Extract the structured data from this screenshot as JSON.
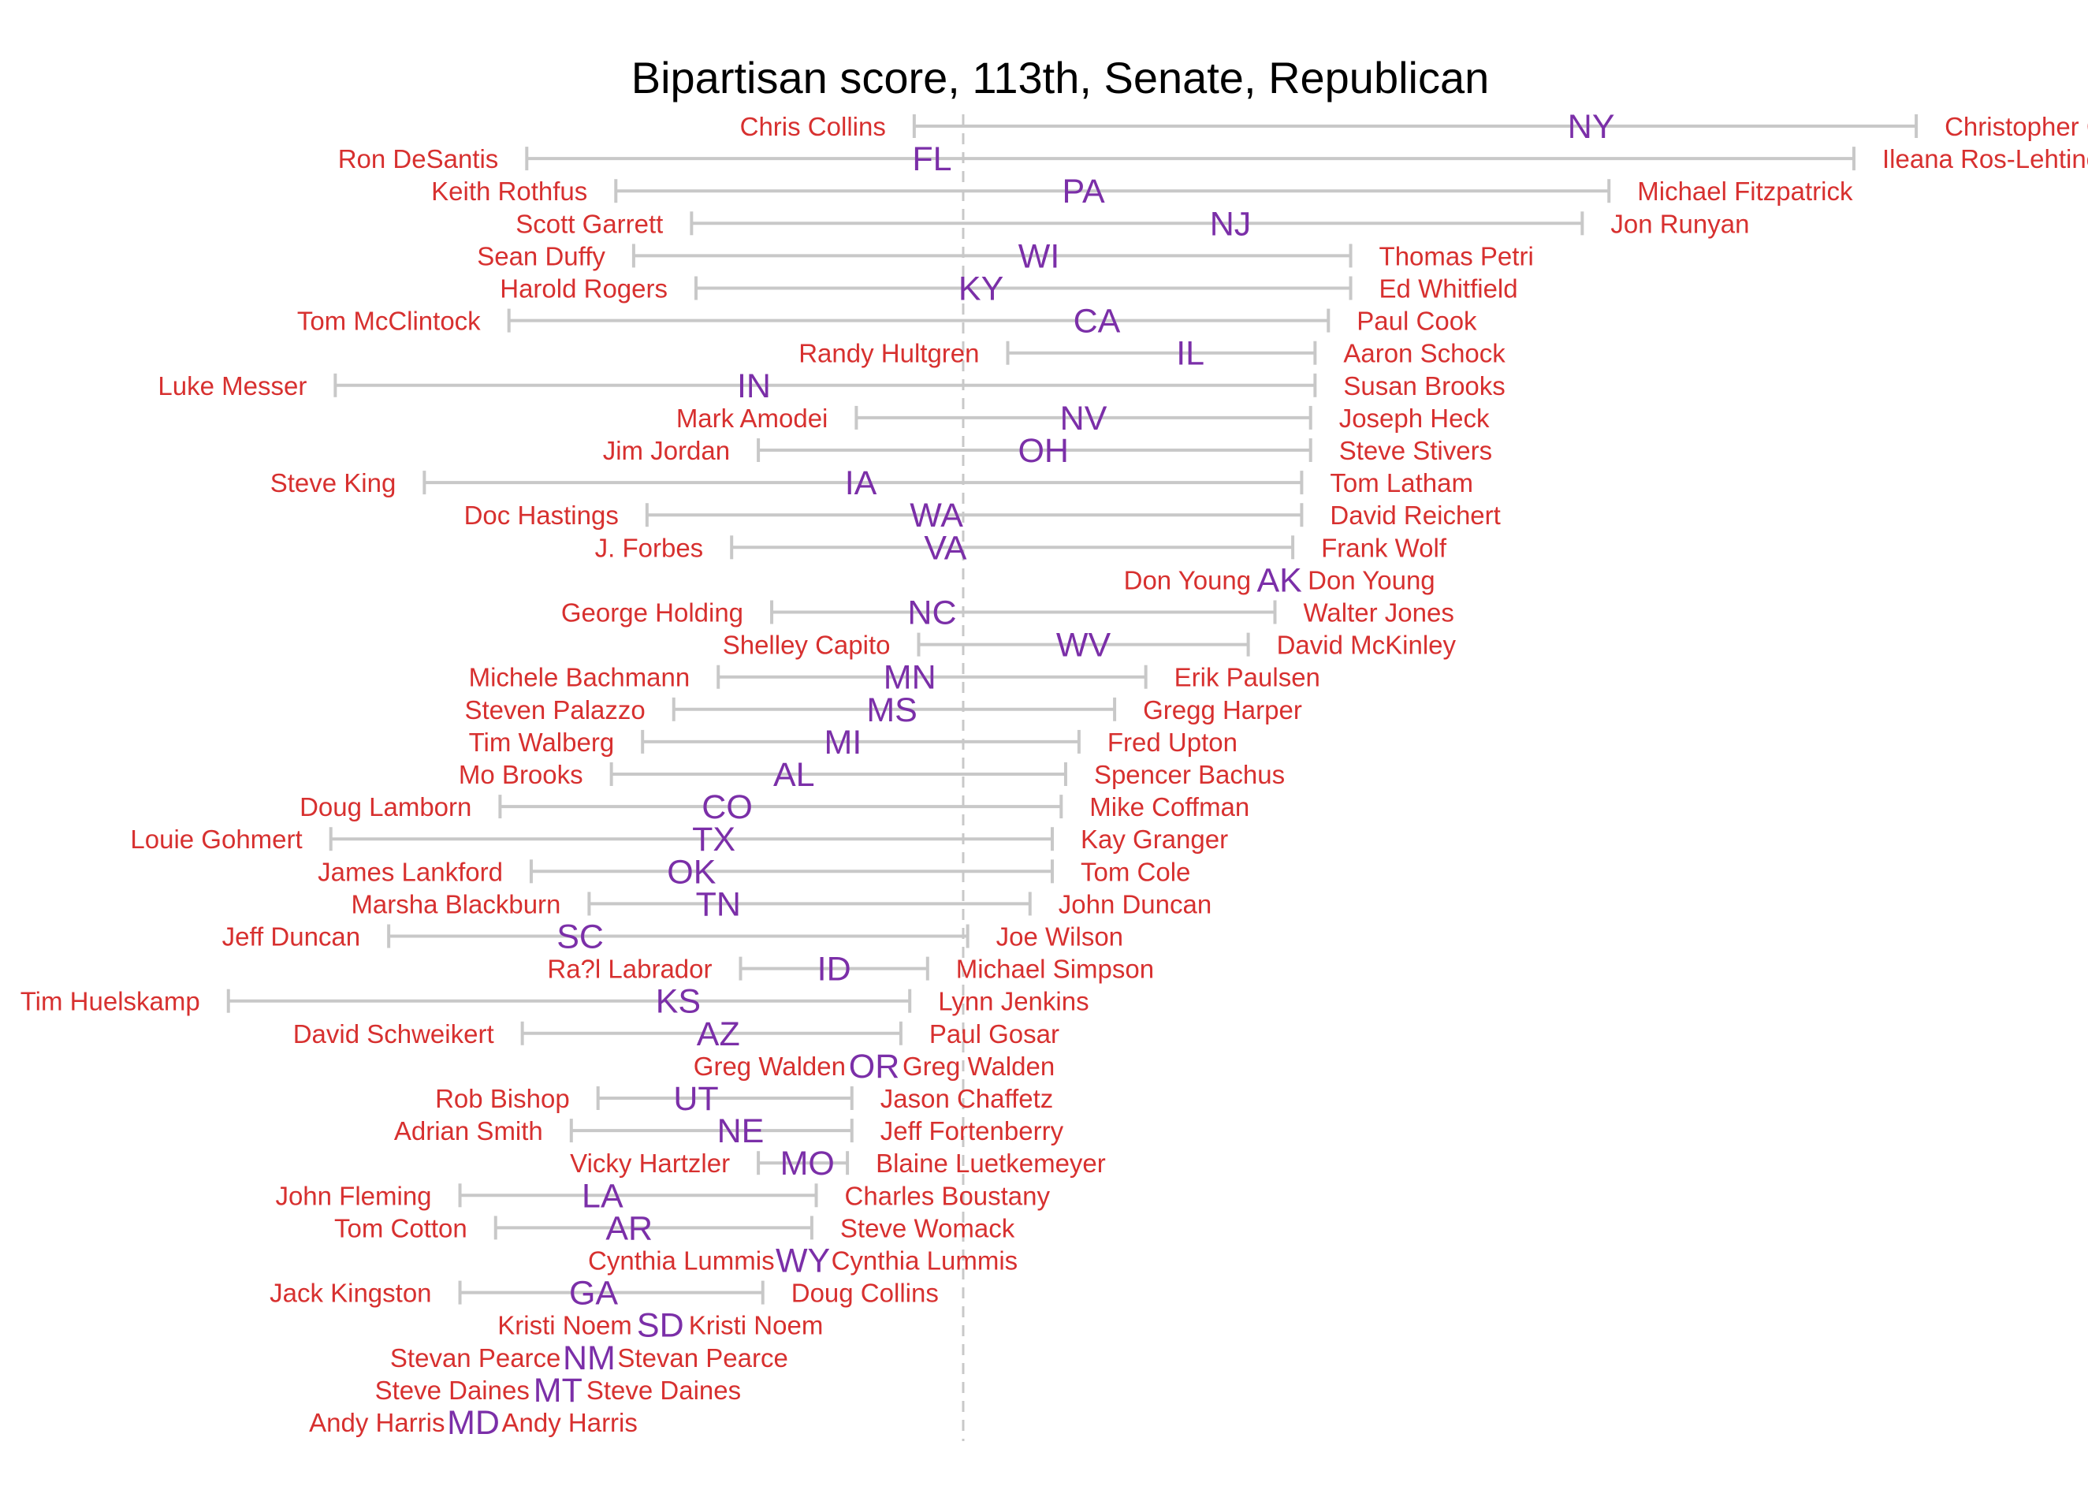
{
  "colors": {
    "name": "#d7302f",
    "state": "#7b2fa8",
    "range": "#c8c8c8",
    "reference": "#c8c8c8"
  },
  "chart_data": {
    "type": "range",
    "title": "Bipartisan score, 113th, Senate, Republican",
    "xlabel": "",
    "ylabel": "",
    "grid": false,
    "legend": "none",
    "xlim": [
      -2.15,
      3.1
    ],
    "reference_line": 0,
    "rows": [
      {
        "state": "NY",
        "low_name": "Chris Collins",
        "high_name": "Christopher Gibs",
        "low": -0.11,
        "high": 2.14,
        "mid": 1.41
      },
      {
        "state": "FL",
        "low_name": "Ron DeSantis",
        "high_name": "Ileana Ros-Lehtinen",
        "low": -0.98,
        "high": 2.0,
        "mid": -0.07
      },
      {
        "state": "PA",
        "low_name": "Keith Rothfus",
        "high_name": "Michael Fitzpatrick",
        "low": -0.78,
        "high": 1.45,
        "mid": 0.27
      },
      {
        "state": "NJ",
        "low_name": "Scott Garrett",
        "high_name": "Jon Runyan",
        "low": -0.61,
        "high": 1.39,
        "mid": 0.6
      },
      {
        "state": "WI",
        "low_name": "Sean Duffy",
        "high_name": "Thomas Petri",
        "low": -0.74,
        "high": 0.87,
        "mid": 0.17
      },
      {
        "state": "KY",
        "low_name": "Harold Rogers",
        "high_name": "Ed Whitfield",
        "low": -0.6,
        "high": 0.87,
        "mid": 0.04
      },
      {
        "state": "CA",
        "low_name": "Tom McClintock",
        "high_name": "Paul Cook",
        "low": -1.02,
        "high": 0.82,
        "mid": 0.3
      },
      {
        "state": "IL",
        "low_name": "Randy Hultgren",
        "high_name": "Aaron Schock",
        "low": 0.1,
        "high": 0.79,
        "mid": 0.51
      },
      {
        "state": "IN",
        "low_name": "Luke Messer",
        "high_name": "Susan Brooks",
        "low": -1.41,
        "high": 0.79,
        "mid": -0.47
      },
      {
        "state": "NV",
        "low_name": "Mark Amodei",
        "high_name": "Joseph Heck",
        "low": -0.24,
        "high": 0.78,
        "mid": 0.27
      },
      {
        "state": "OH",
        "low_name": "Jim Jordan",
        "high_name": "Steve Stivers",
        "low": -0.46,
        "high": 0.78,
        "mid": 0.18
      },
      {
        "state": "IA",
        "low_name": "Steve King",
        "high_name": "Tom Latham",
        "low": -1.21,
        "high": 0.76,
        "mid": -0.23
      },
      {
        "state": "WA",
        "low_name": "Doc Hastings",
        "high_name": "David Reichert",
        "low": -0.71,
        "high": 0.76,
        "mid": -0.06
      },
      {
        "state": "VA",
        "low_name": "J. Forbes",
        "high_name": "Frank Wolf",
        "low": -0.52,
        "high": 0.74,
        "mid": -0.04
      },
      {
        "state": "AK",
        "low_name": "Don Young",
        "high_name": "Don Young",
        "low": 0.71,
        "high": 0.71,
        "mid": 0.71
      },
      {
        "state": "NC",
        "low_name": "George Holding",
        "high_name": "Walter Jones",
        "low": -0.43,
        "high": 0.7,
        "mid": -0.07
      },
      {
        "state": "WV",
        "low_name": "Shelley Capito",
        "high_name": "David McKinley",
        "low": -0.1,
        "high": 0.64,
        "mid": 0.27
      },
      {
        "state": "MN",
        "low_name": "Michele Bachmann",
        "high_name": "Erik Paulsen",
        "low": -0.55,
        "high": 0.41,
        "mid": -0.12
      },
      {
        "state": "MS",
        "low_name": "Steven Palazzo",
        "high_name": "Gregg Harper",
        "low": -0.65,
        "high": 0.34,
        "mid": -0.16
      },
      {
        "state": "MI",
        "low_name": "Tim Walberg",
        "high_name": "Fred Upton",
        "low": -0.72,
        "high": 0.26,
        "mid": -0.27
      },
      {
        "state": "AL",
        "low_name": "Mo Brooks",
        "high_name": "Spencer Bachus",
        "low": -0.79,
        "high": 0.23,
        "mid": -0.38
      },
      {
        "state": "CO",
        "low_name": "Doug Lamborn",
        "high_name": "Mike Coffman",
        "low": -1.04,
        "high": 0.22,
        "mid": -0.53
      },
      {
        "state": "TX",
        "low_name": "Louie Gohmert",
        "high_name": "Kay Granger",
        "low": -1.42,
        "high": 0.2,
        "mid": -0.56
      },
      {
        "state": "OK",
        "low_name": "James Lankford",
        "high_name": "Tom Cole",
        "low": -0.97,
        "high": 0.2,
        "mid": -0.61
      },
      {
        "state": "TN",
        "low_name": "Marsha Blackburn",
        "high_name": "John Duncan",
        "low": -0.84,
        "high": 0.15,
        "mid": -0.55
      },
      {
        "state": "SC",
        "low_name": "Jeff Duncan",
        "high_name": "Joe Wilson",
        "low": -1.29,
        "high": 0.01,
        "mid": -0.86
      },
      {
        "state": "ID",
        "low_name": "Ra?l Labrador",
        "high_name": "Michael Simpson",
        "low": -0.5,
        "high": -0.08,
        "mid": -0.29
      },
      {
        "state": "KS",
        "low_name": "Tim Huelskamp",
        "high_name": "Lynn Jenkins",
        "low": -1.65,
        "high": -0.12,
        "mid": -0.64
      },
      {
        "state": "AZ",
        "low_name": "David Schweikert",
        "high_name": "Paul Gosar",
        "low": -0.99,
        "high": -0.14,
        "mid": -0.55
      },
      {
        "state": "OR",
        "low_name": "Greg Walden",
        "high_name": "Greg Walden",
        "low": -0.2,
        "high": -0.2,
        "mid": -0.2
      },
      {
        "state": "UT",
        "low_name": "Rob Bishop",
        "high_name": "Jason Chaffetz",
        "low": -0.82,
        "high": -0.25,
        "mid": -0.6
      },
      {
        "state": "NE",
        "low_name": "Adrian Smith",
        "high_name": "Jeff Fortenberry",
        "low": -0.88,
        "high": -0.25,
        "mid": -0.5
      },
      {
        "state": "MO",
        "low_name": "Vicky Hartzler",
        "high_name": "Blaine Luetkemeyer",
        "low": -0.46,
        "high": -0.26,
        "mid": -0.35
      },
      {
        "state": "LA",
        "low_name": "John Fleming",
        "high_name": "Charles Boustany",
        "low": -1.13,
        "high": -0.33,
        "mid": -0.81
      },
      {
        "state": "AR",
        "low_name": "Tom Cotton",
        "high_name": "Steve Womack",
        "low": -1.05,
        "high": -0.34,
        "mid": -0.75
      },
      {
        "state": "WY",
        "low_name": "Cynthia Lummis",
        "high_name": "Cynthia Lummis",
        "low": -0.36,
        "high": -0.36,
        "mid": -0.36
      },
      {
        "state": "GA",
        "low_name": "Jack Kingston",
        "high_name": "Doug Collins",
        "low": -1.13,
        "high": -0.45,
        "mid": -0.83
      },
      {
        "state": "SD",
        "low_name": "Kristi Noem",
        "high_name": "Kristi Noem",
        "low": -0.68,
        "high": -0.68,
        "mid": -0.68
      },
      {
        "state": "NM",
        "low_name": "Stevan Pearce",
        "high_name": "Stevan Pearce",
        "low": -0.84,
        "high": -0.84,
        "mid": -0.84
      },
      {
        "state": "MT",
        "low_name": "Steve Daines",
        "high_name": "Steve Daines",
        "low": -0.91,
        "high": -0.91,
        "mid": -0.91
      },
      {
        "state": "MD",
        "low_name": "Andy Harris",
        "high_name": "Andy Harris",
        "low": -1.1,
        "high": -1.1,
        "mid": -1.1
      }
    ]
  }
}
